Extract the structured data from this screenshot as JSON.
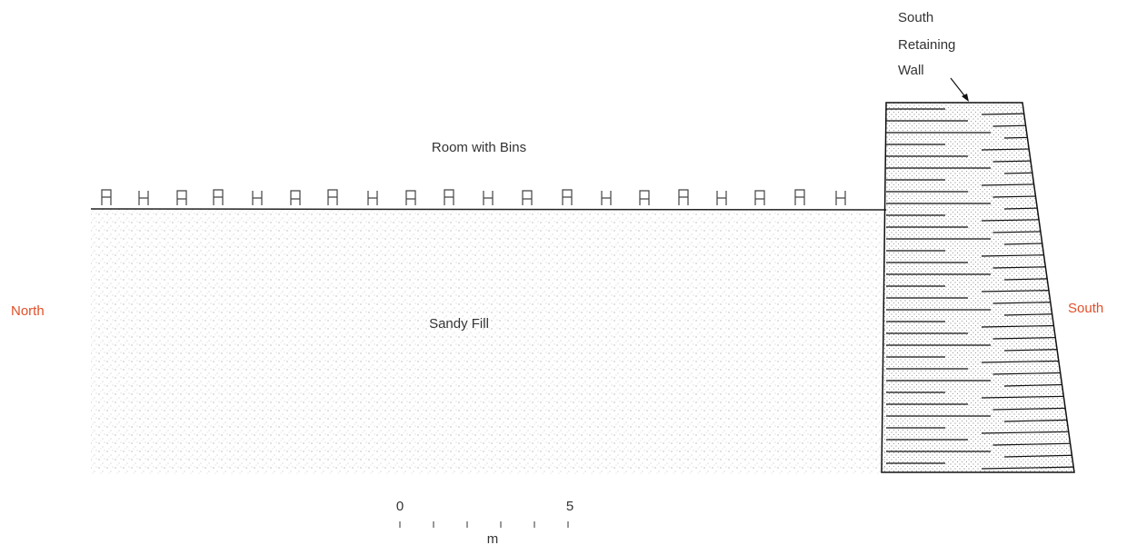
{
  "labels": {
    "wall": [
      "South",
      "Retaining",
      "Wall"
    ],
    "room": "Room with Bins",
    "north": "North",
    "fill": "Sandy Fill",
    "south": "South"
  },
  "scale": {
    "start": "0",
    "end": "5",
    "unit": "m"
  }
}
